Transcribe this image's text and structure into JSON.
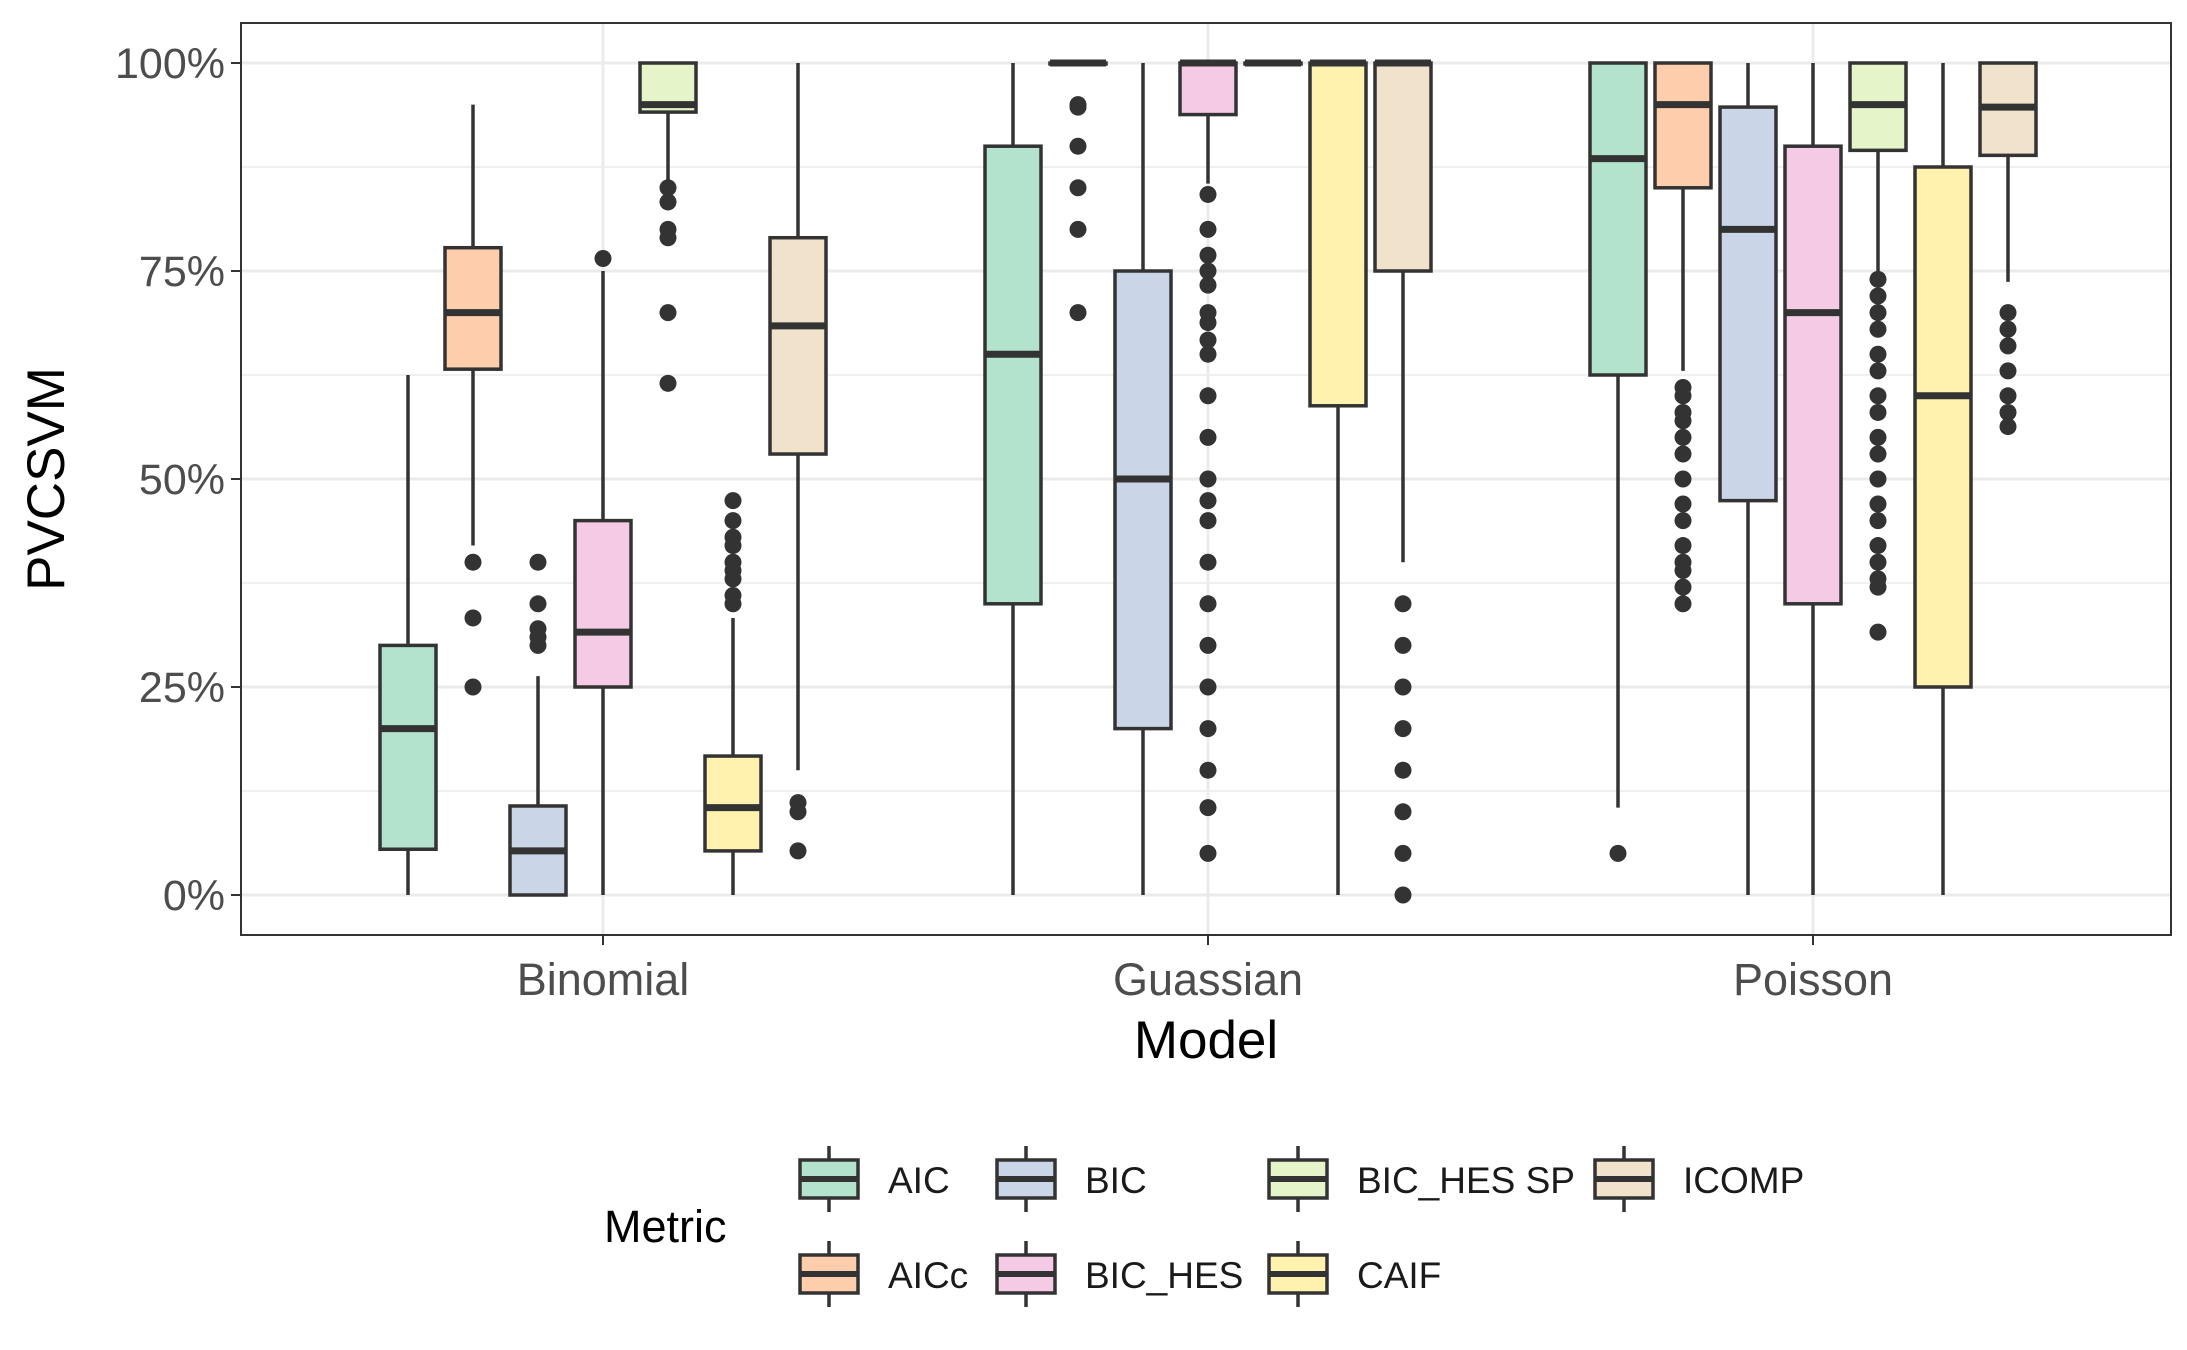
{
  "chart_data": {
    "type": "boxplot",
    "title": "",
    "xlabel": "Model",
    "ylabel": "PVCSVM",
    "ylim": [
      0,
      1
    ],
    "y_ticks": [
      0,
      0.25,
      0.5,
      0.75,
      1.0
    ],
    "y_tick_labels": [
      "0%",
      "25%",
      "50%",
      "75%",
      "100%"
    ],
    "grid": true,
    "legend_position": "bottom",
    "legend_title": "Metric",
    "categories": [
      "Binomial",
      "Guassian",
      "Poisson"
    ],
    "series": [
      {
        "name": "AIC",
        "color": "#b3e2cd",
        "boxes": [
          {
            "min": 0.0,
            "q1": 0.055,
            "median": 0.2,
            "q3": 0.3,
            "max": 0.625,
            "outliers": []
          },
          {
            "min": 0.0,
            "q1": 0.35,
            "median": 0.65,
            "q3": 0.9,
            "max": 1.0,
            "outliers": []
          },
          {
            "min": 0.105,
            "q1": 0.625,
            "median": 0.885,
            "q3": 1.0,
            "max": 1.0,
            "outliers": [
              0.05
            ]
          }
        ]
      },
      {
        "name": "AICc",
        "color": "#fdcdac",
        "boxes": [
          {
            "min": 0.42,
            "q1": 0.632,
            "median": 0.7,
            "q3": 0.778,
            "max": 0.95,
            "outliers": [
              0.4,
              0.333,
              0.25
            ]
          },
          {
            "min": 1.0,
            "q1": 1.0,
            "median": 1.0,
            "q3": 1.0,
            "max": 1.0,
            "outliers": [
              0.95,
              0.947,
              0.9,
              0.85,
              0.8,
              0.7
            ]
          },
          {
            "min": 0.63,
            "q1": 0.85,
            "median": 0.95,
            "q3": 1.0,
            "max": 1.0,
            "outliers": [
              0.61,
              0.6,
              0.58,
              0.57,
              0.55,
              0.53,
              0.5,
              0.47,
              0.45,
              0.42,
              0.4,
              0.39,
              0.37,
              0.35
            ]
          }
        ]
      },
      {
        "name": "BIC",
        "color": "#cbd5e8",
        "boxes": [
          {
            "min": 0.0,
            "q1": 0.0,
            "median": 0.053,
            "q3": 0.107,
            "max": 0.263,
            "outliers": [
              0.4,
              0.35,
              0.32,
              0.31,
              0.3
            ]
          },
          {
            "min": 0.0,
            "q1": 0.2,
            "median": 0.5,
            "q3": 0.75,
            "max": 1.0,
            "outliers": []
          },
          {
            "min": 0.0,
            "q1": 0.474,
            "median": 0.8,
            "q3": 0.947,
            "max": 1.0,
            "outliers": []
          }
        ]
      },
      {
        "name": "BIC_HES",
        "color": "#f4cae4",
        "boxes": [
          {
            "min": 0.0,
            "q1": 0.25,
            "median": 0.316,
            "q3": 0.45,
            "max": 0.75,
            "outliers": [
              0.765
            ]
          },
          {
            "min": 0.855,
            "q1": 0.938,
            "median": 1.0,
            "q3": 1.0,
            "max": 1.0,
            "outliers": [
              0.842,
              0.8,
              0.769,
              0.75,
              0.733,
              0.7,
              0.688,
              0.667,
              0.65,
              0.6,
              0.55,
              0.5,
              0.474,
              0.45,
              0.4,
              0.35,
              0.3,
              0.25,
              0.2,
              0.15,
              0.105,
              0.05
            ]
          },
          {
            "min": 0.0,
            "q1": 0.35,
            "median": 0.7,
            "q3": 0.9,
            "max": 1.0,
            "outliers": []
          }
        ]
      },
      {
        "name": "BIC_HES SP",
        "color": "#e6f5c9",
        "boxes": [
          {
            "min": 0.85,
            "q1": 0.941,
            "median": 0.95,
            "q3": 1.0,
            "max": 1.0,
            "outliers": [
              0.85,
              0.833,
              0.8,
              0.79,
              0.7,
              0.615
            ]
          },
          {
            "min": 1.0,
            "q1": 1.0,
            "median": 1.0,
            "q3": 1.0,
            "max": 1.0,
            "outliers": []
          },
          {
            "min": 0.75,
            "q1": 0.895,
            "median": 0.95,
            "q3": 1.0,
            "max": 1.0,
            "outliers": [
              0.74,
              0.72,
              0.7,
              0.68,
              0.65,
              0.63,
              0.6,
              0.58,
              0.55,
              0.53,
              0.5,
              0.47,
              0.45,
              0.42,
              0.4,
              0.38,
              0.37,
              0.316
            ]
          }
        ]
      },
      {
        "name": "CAIF",
        "color": "#fff2ae",
        "boxes": [
          {
            "min": 0.0,
            "q1": 0.053,
            "median": 0.105,
            "q3": 0.167,
            "max": 0.333,
            "outliers": [
              0.474,
              0.45,
              0.43,
              0.42,
              0.4,
              0.39,
              0.38,
              0.36,
              0.35
            ]
          },
          {
            "min": 0.0,
            "q1": 0.588,
            "median": 1.0,
            "q3": 1.0,
            "max": 1.0,
            "outliers": []
          },
          {
            "min": 0.0,
            "q1": 0.25,
            "median": 0.6,
            "q3": 0.875,
            "max": 1.0,
            "outliers": []
          }
        ]
      },
      {
        "name": "ICOMP",
        "color": "#f1e2cc",
        "boxes": [
          {
            "min": 0.15,
            "q1": 0.53,
            "median": 0.684,
            "q3": 0.79,
            "max": 1.0,
            "outliers": [
              0.111,
              0.1,
              0.053
            ]
          },
          {
            "min": 0.4,
            "q1": 0.75,
            "median": 1.0,
            "q3": 1.0,
            "max": 1.0,
            "outliers": [
              0.35,
              0.3,
              0.25,
              0.2,
              0.15,
              0.1,
              0.05,
              0.0
            ]
          },
          {
            "min": 0.737,
            "q1": 0.889,
            "median": 0.947,
            "q3": 1.0,
            "max": 1.0,
            "outliers": [
              0.7,
              0.68,
              0.66,
              0.63,
              0.6,
              0.58,
              0.563
            ]
          }
        ]
      }
    ],
    "legend_entries": [
      [
        "AIC",
        "BIC",
        "BIC_HES SP",
        "ICOMP"
      ],
      [
        "AICc",
        "BIC_HES",
        "CAIF"
      ]
    ]
  }
}
